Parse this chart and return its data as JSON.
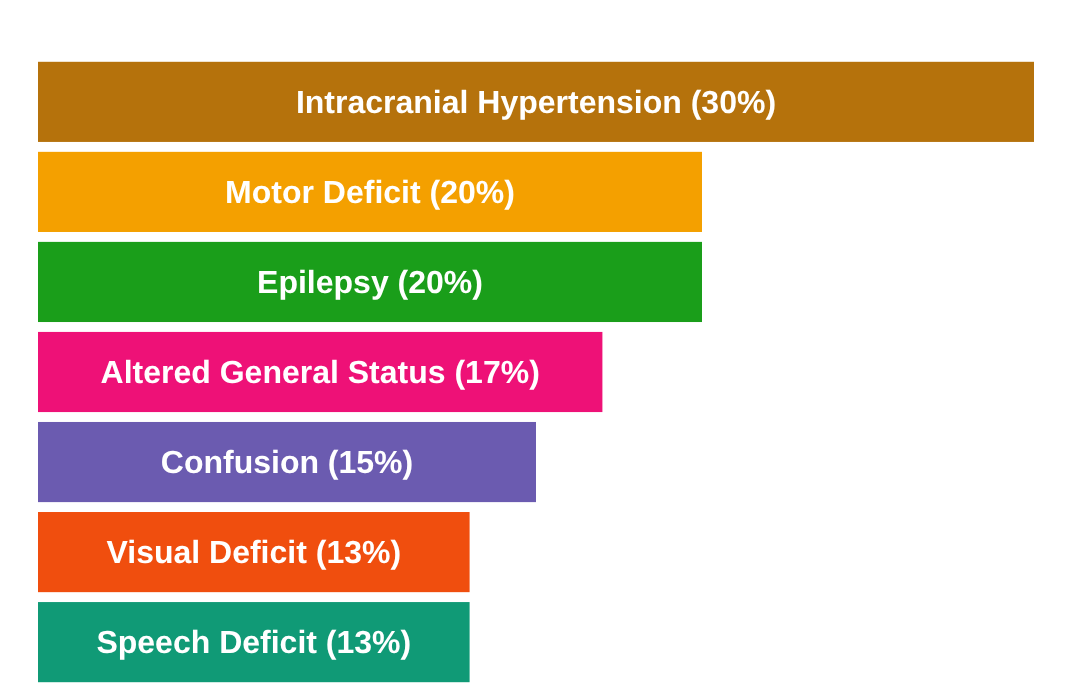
{
  "chart_data": {
    "type": "bar",
    "orientation": "horizontal",
    "categories": [
      "Intracranial Hypertension",
      "Motor Deficit",
      "Epilepsy",
      "Altered General Status",
      "Confusion",
      "Visual Deficit",
      "Speech Deficit"
    ],
    "values": [
      30,
      20,
      20,
      17,
      15,
      13,
      13
    ],
    "value_labels": [
      "(30%)",
      "(20%)",
      "(20%)",
      "(17%)",
      "(15%)",
      "(13%)",
      "(13%)"
    ],
    "colors": [
      "#b5720c",
      "#f4a000",
      "#1a9e1a",
      "#ee1177",
      "#6b5bb0",
      "#f04e0e",
      "#109a76"
    ],
    "xlim": [
      0,
      30
    ]
  }
}
